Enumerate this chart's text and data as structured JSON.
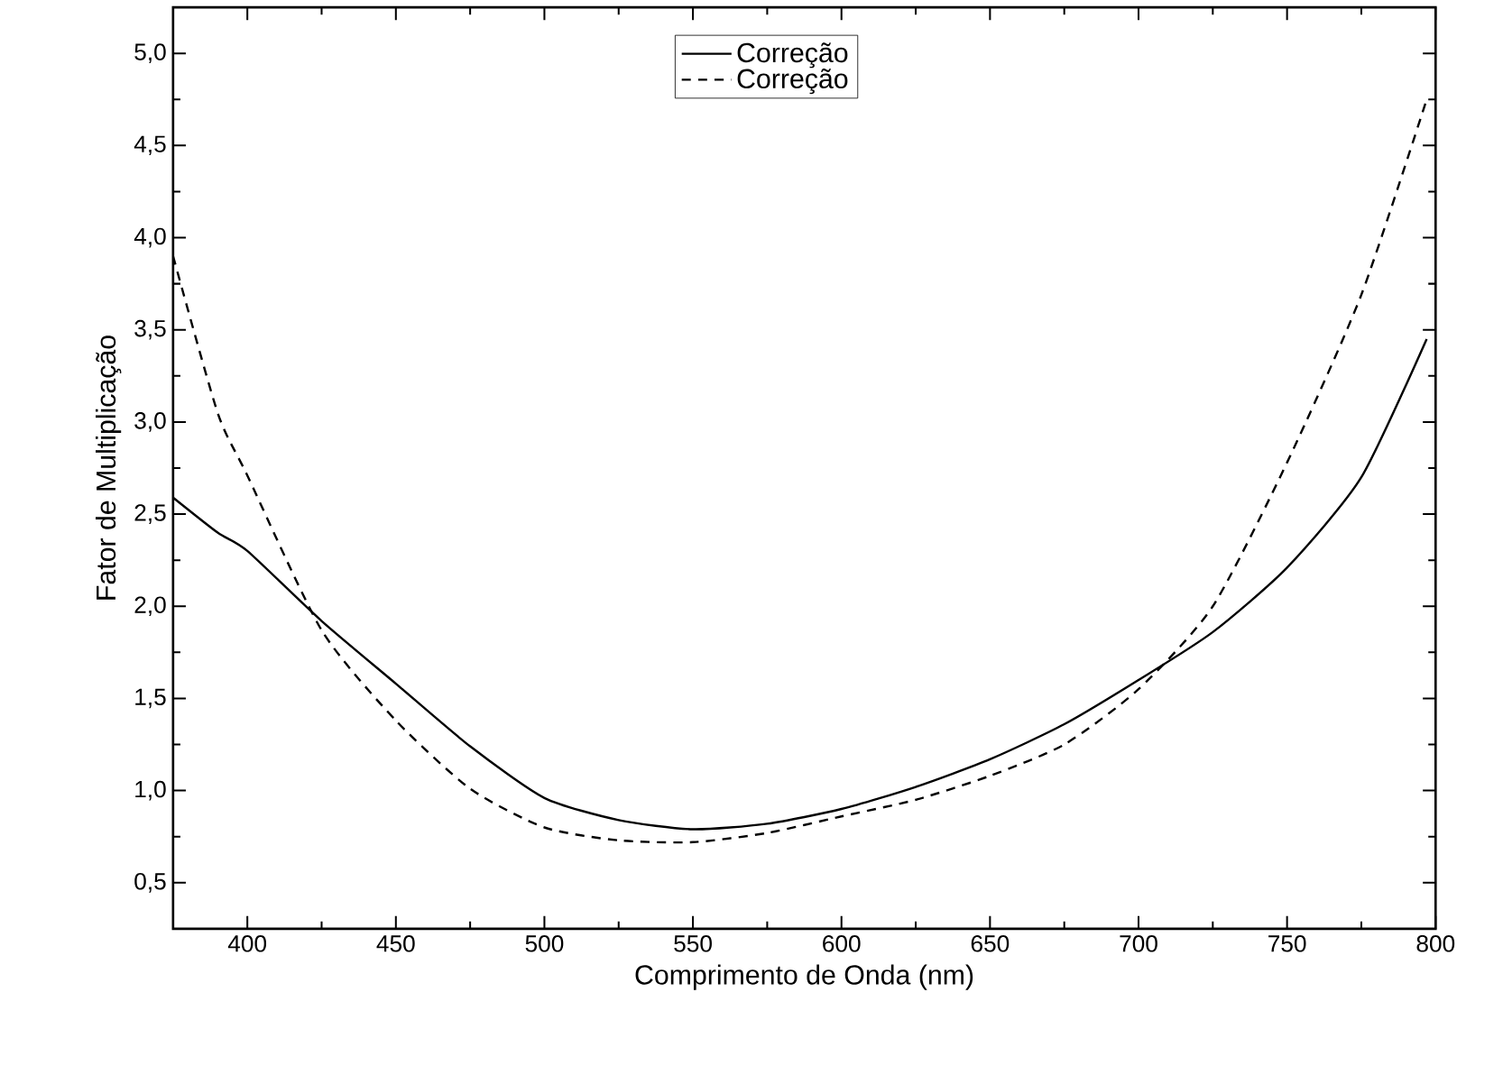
{
  "chart_data": {
    "type": "line",
    "xlabel": "Comprimento de Onda (nm)",
    "ylabel": "Fator de Multiplicação",
    "x": [
      375,
      390,
      400,
      425,
      450,
      475,
      500,
      525,
      550,
      575,
      600,
      625,
      650,
      675,
      700,
      725,
      750,
      775,
      797
    ],
    "series": [
      {
        "name": "Correção",
        "color": "#000000",
        "line_style": "solid",
        "values": [
          2.59,
          2.4,
          2.3,
          1.92,
          1.58,
          1.24,
          0.96,
          0.84,
          0.79,
          0.82,
          0.9,
          1.02,
          1.17,
          1.36,
          1.6,
          1.86,
          2.21,
          2.7,
          3.45
        ]
      },
      {
        "name": "Correção",
        "color": "#000000",
        "line_style": "dashed",
        "values": [
          3.9,
          3.05,
          2.71,
          1.87,
          1.38,
          1.01,
          0.8,
          0.73,
          0.72,
          0.77,
          0.86,
          0.95,
          1.08,
          1.25,
          1.55,
          2.0,
          2.78,
          3.69,
          4.75
        ]
      }
    ],
    "xlim": [
      375,
      800
    ],
    "ylim": [
      0.25,
      5.25
    ],
    "xticks": [
      400,
      450,
      500,
      550,
      600,
      650,
      700,
      750,
      800
    ],
    "yticks": [
      {
        "value": 0.5,
        "label": "0,5"
      },
      {
        "value": 1.0,
        "label": "1,0"
      },
      {
        "value": 1.5,
        "label": "1,5"
      },
      {
        "value": 2.0,
        "label": "2,0"
      },
      {
        "value": 2.5,
        "label": "2,5"
      },
      {
        "value": 3.0,
        "label": "3,0"
      },
      {
        "value": 3.5,
        "label": "3,5"
      },
      {
        "value": 4.0,
        "label": "4,0"
      },
      {
        "value": 4.5,
        "label": "4,5"
      },
      {
        "value": 5.0,
        "label": "5,0"
      }
    ],
    "grid": false,
    "legend": "top",
    "marker": "none"
  }
}
